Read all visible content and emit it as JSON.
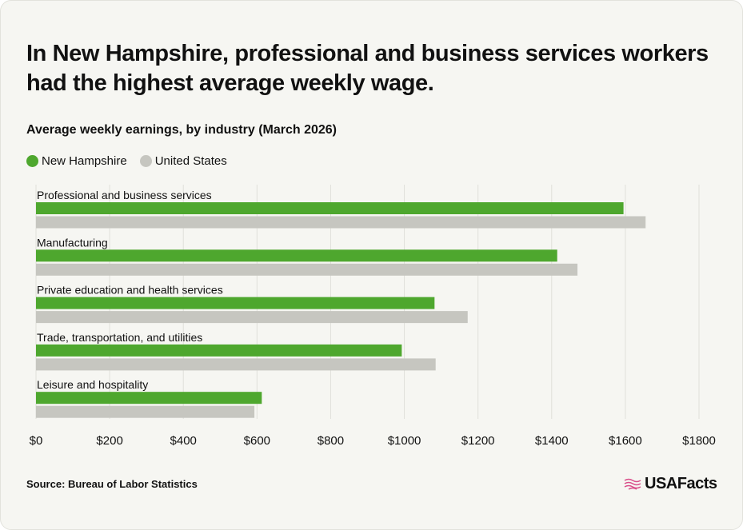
{
  "title": "In New Hampshire, professional and business services workers had the highest average weekly wage.",
  "subtitle": "Average weekly earnings, by industry (March 2026)",
  "source": "Source: Bureau of Labor Statistics",
  "brand": "USAFacts",
  "colors": {
    "new_hampshire": "#4ea72e",
    "united_states": "#c6c6c0",
    "grid": "#e0e0da",
    "brand_accent": "#d94f8a"
  },
  "chart_data": {
    "type": "bar",
    "orientation": "horizontal",
    "categories": [
      "Professional and business services",
      "Manufacturing",
      "Private education and health services",
      "Trade, transportation, and utilities",
      "Leisure and hospitality"
    ],
    "series": [
      {
        "name": "New Hampshire",
        "values": [
          1595,
          1415,
          1082,
          993,
          613
        ]
      },
      {
        "name": "United States",
        "values": [
          1655,
          1470,
          1172,
          1085,
          593
        ]
      }
    ],
    "xlim": [
      0,
      1800
    ],
    "xticks": [
      "$0",
      "$200",
      "$400",
      "$600",
      "$800",
      "$1000",
      "$1200",
      "$1400",
      "$1600",
      "$1800"
    ],
    "xtick_values": [
      0,
      200,
      400,
      600,
      800,
      1000,
      1200,
      1400,
      1600,
      1800
    ],
    "grid": true,
    "legend_position": "top-left"
  }
}
